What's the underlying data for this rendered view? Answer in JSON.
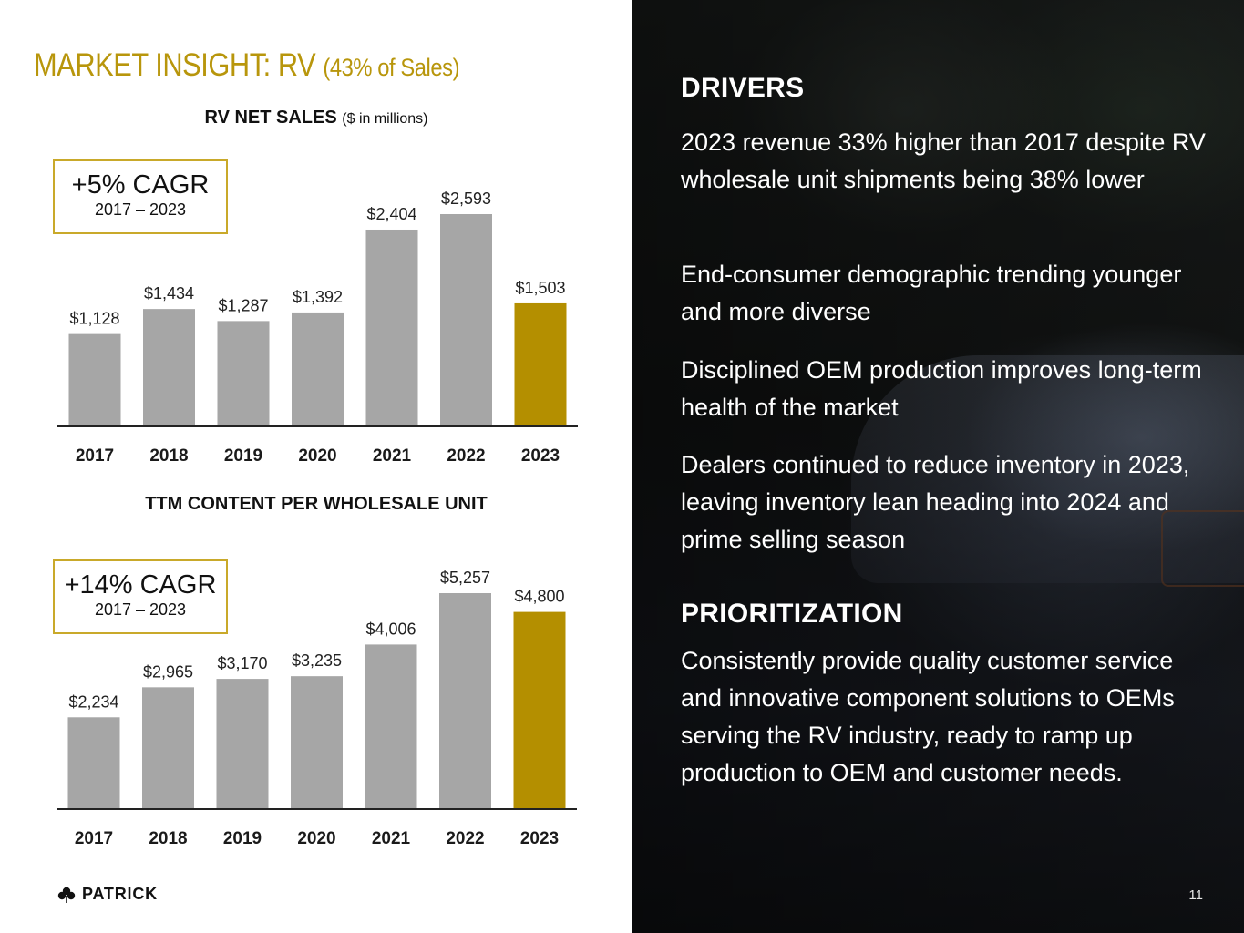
{
  "title": {
    "main": "MARKET INSIGHT: RV",
    "sub": "(43% of Sales)"
  },
  "colors": {
    "accent_gold": "#b8960c",
    "bar_gray": "#a6a6a6",
    "bar_highlight": "#b48f00",
    "axis": "#222222"
  },
  "chart_data": [
    {
      "type": "bar",
      "title": "RV NET SALES",
      "title_unit": "($ in millions)",
      "categories": [
        "2017",
        "2018",
        "2019",
        "2020",
        "2021",
        "2022",
        "2023"
      ],
      "values": [
        1128,
        1434,
        1287,
        1392,
        2404,
        2593,
        1503
      ],
      "labels": [
        "$1,128",
        "$1,434",
        "$1,287",
        "$1,392",
        "$2,404",
        "$2,593",
        "$1,503"
      ],
      "highlight_index": 6,
      "xlabel": "",
      "ylabel": "",
      "ylim": [
        0,
        2593
      ],
      "grid": false,
      "callout": {
        "big": "+5%  CAGR",
        "small": "2017 – 2023"
      }
    },
    {
      "type": "bar",
      "title": "TTM CONTENT PER WHOLESALE UNIT",
      "title_unit": "",
      "categories": [
        "2017",
        "2018",
        "2019",
        "2020",
        "2021",
        "2022",
        "2023"
      ],
      "values": [
        2234,
        2965,
        3170,
        3235,
        4006,
        5257,
        4800
      ],
      "labels": [
        "$2,234",
        "$2,965",
        "$3,170",
        "$3,235",
        "$4,006",
        "$5,257",
        "$4,800"
      ],
      "highlight_index": 6,
      "xlabel": "",
      "ylabel": "",
      "ylim": [
        0,
        5257
      ],
      "grid": false,
      "callout": {
        "big": "+14% CAGR",
        "small": "2017 – 2023"
      }
    }
  ],
  "drivers": {
    "heading": "DRIVERS",
    "points": [
      "2023 revenue 33% higher than 2017 despite RV wholesale unit shipments being 38% lower",
      "End-consumer demographic trending younger and more diverse",
      "Disciplined OEM production improves long-term health of the market",
      "Dealers continued to reduce inventory in 2023, leaving inventory lean heading into 2024 and prime selling season"
    ]
  },
  "prioritization": {
    "heading": "PRIORITIZATION",
    "text": "Consistently provide quality customer service and innovative component solutions to OEMs serving the RV industry, ready to ramp up production to OEM and customer needs."
  },
  "footer": {
    "logo_text": "PATRICK",
    "logo_icon": "shamrock-icon",
    "page_number": "11"
  }
}
